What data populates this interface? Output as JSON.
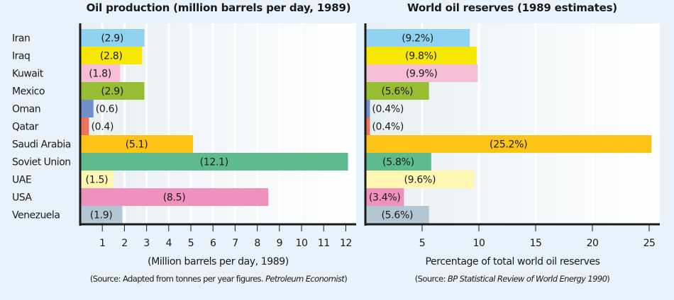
{
  "chart_data": [
    {
      "type": "bar",
      "orientation": "horizontal",
      "title": "Oil production (million barrels per day, 1989)",
      "xlabel": "(Million barrels per day, 1989)",
      "ylabel": "",
      "categories": [
        "Iran",
        "Iraq",
        "Kuwait",
        "Mexico",
        "Oman",
        "Qatar",
        "Saudi Arabia",
        "Soviet Union",
        "UAE",
        "USA",
        "Venezuela"
      ],
      "values": [
        2.9,
        2.8,
        1.8,
        2.9,
        0.6,
        0.4,
        5.1,
        12.1,
        1.5,
        8.5,
        1.9
      ],
      "value_labels": [
        "(2.9)",
        "(2.8)",
        "(1.8)",
        "(2.9)",
        "(0.6)",
        "(0.4)",
        "(5.1)",
        "(12.1)",
        "(1.5)",
        "(8.5)",
        "(1.9)"
      ],
      "xlim": [
        0,
        12.5
      ],
      "xticks": [
        1,
        2,
        3,
        4,
        5,
        6,
        7,
        8,
        9,
        10,
        11,
        12
      ],
      "grid": true,
      "source_prefix": "(Source: Adapted from tonnes per year figures. ",
      "source_italic": "Petroleum Economist",
      "source_suffix": ")"
    },
    {
      "type": "bar",
      "orientation": "horizontal",
      "title": "World oil reserves (1989 estimates)",
      "xlabel": "Percentage of total world oil reserves",
      "ylabel": "",
      "categories": [
        "Iran",
        "Iraq",
        "Kuwait",
        "Mexico",
        "Oman",
        "Qatar",
        "Saudi Arabia",
        "Soviet Union",
        "UAE",
        "USA",
        "Venezuela"
      ],
      "values": [
        9.2,
        9.8,
        9.9,
        5.6,
        0.4,
        0.4,
        25.2,
        5.8,
        9.6,
        3.4,
        5.6
      ],
      "value_labels": [
        "(9.2%)",
        "(9.8%)",
        "(9.9%)",
        "(5.6%)",
        "(0.4%)",
        "(0.4%)",
        "(25.2%)",
        "(5.8%)",
        "(9.6%)",
        "(3.4%)",
        "(5.6%)"
      ],
      "xlim": [
        0,
        26
      ],
      "xticks": [
        5,
        10,
        15,
        20,
        25
      ],
      "grid": true,
      "source_prefix": "(Source: ",
      "source_italic": "BP Statistical Review of World Energy 1990",
      "source_suffix": ")"
    }
  ],
  "colors": {
    "Iran": "#8fd3f1",
    "Iraq": "#f8e800",
    "Kuwait": "#f6bdd6",
    "Mexico": "#97be32",
    "Oman": "#6f8fcb",
    "Qatar": "#ee735e",
    "Saudi Arabia": "#fcc416",
    "Soviet Union": "#5dbb8d",
    "UAE": "#fff6b1",
    "USA": "#ee92bd",
    "Venezuela": "#b3c6d3",
    "background": "#e8f2fa",
    "axis": "#1a1a1a"
  }
}
